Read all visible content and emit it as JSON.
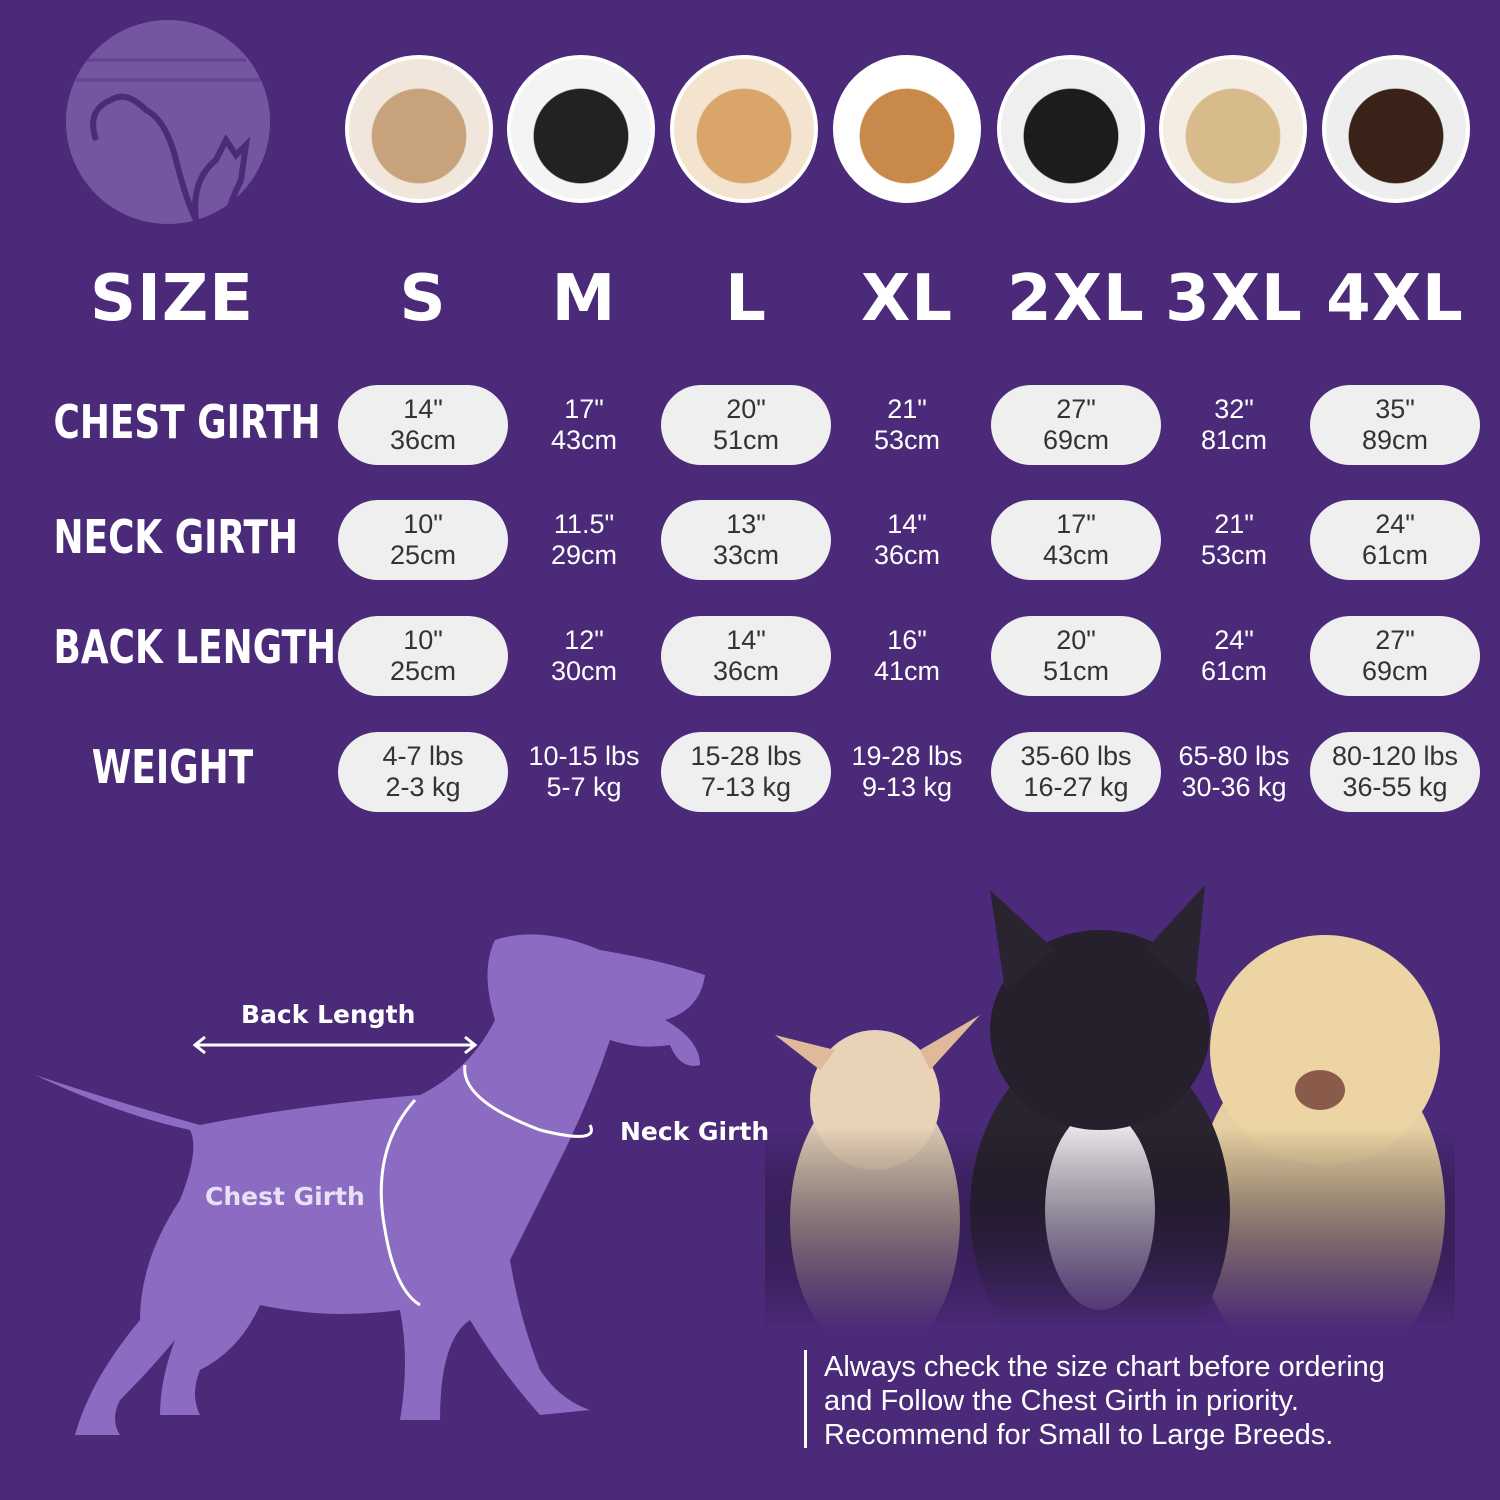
{
  "colors": {
    "background": "#4b2a79",
    "pill": "#efeff0",
    "silhouette": "#8b6cc2"
  },
  "header": {
    "size_label": "SIZE",
    "sizes": [
      "S",
      "M",
      "L",
      "XL",
      "2XL",
      "3XL",
      "4XL"
    ]
  },
  "photos": [
    "shih-tzu",
    "boston-terrier",
    "cocker-spaniel",
    "beagle",
    "border-collie",
    "labrador",
    "doberman"
  ],
  "chart_data": {
    "type": "table",
    "columns": [
      "SIZE",
      "S",
      "M",
      "L",
      "XL",
      "2XL",
      "3XL",
      "4XL"
    ],
    "rows": [
      {
        "label": "CHEST GIRTH",
        "values": [
          [
            "14\"",
            "36cm"
          ],
          [
            "17\"",
            "43cm"
          ],
          [
            "20\"",
            "51cm"
          ],
          [
            "21\"",
            "53cm"
          ],
          [
            "27\"",
            "69cm"
          ],
          [
            "32\"",
            "81cm"
          ],
          [
            "35\"",
            "89cm"
          ]
        ]
      },
      {
        "label": "NECK GIRTH",
        "values": [
          [
            "10\"",
            "25cm"
          ],
          [
            "11.5\"",
            "29cm"
          ],
          [
            "13\"",
            "33cm"
          ],
          [
            "14\"",
            "36cm"
          ],
          [
            "17\"",
            "43cm"
          ],
          [
            "21\"",
            "53cm"
          ],
          [
            "24\"",
            "61cm"
          ]
        ]
      },
      {
        "label": "BACK LENGTH",
        "values": [
          [
            "10\"",
            "25cm"
          ],
          [
            "12\"",
            "30cm"
          ],
          [
            "14\"",
            "36cm"
          ],
          [
            "16\"",
            "41cm"
          ],
          [
            "20\"",
            "51cm"
          ],
          [
            "24\"",
            "61cm"
          ],
          [
            "27\"",
            "69cm"
          ]
        ]
      },
      {
        "label": "WEIGHT",
        "values": [
          [
            "4-7 lbs",
            "2-3 kg"
          ],
          [
            "10-15 lbs",
            "5-7 kg"
          ],
          [
            "15-28 lbs",
            "7-13 kg"
          ],
          [
            "19-28 lbs",
            "9-13 kg"
          ],
          [
            "35-60 lbs",
            "16-27 kg"
          ],
          [
            "65-80 lbs",
            "30-36 kg"
          ],
          [
            "80-120 lbs",
            "36-55 kg"
          ]
        ]
      }
    ]
  },
  "diagram": {
    "back_length": "Back Length",
    "neck_girth": "Neck Girth",
    "chest_girth": "Chest Girth"
  },
  "note": {
    "lines": [
      "Always check the size chart before ordering",
      "and Follow the Chest Girth in priority.",
      "Recommend for Small to Large Breeds."
    ]
  }
}
